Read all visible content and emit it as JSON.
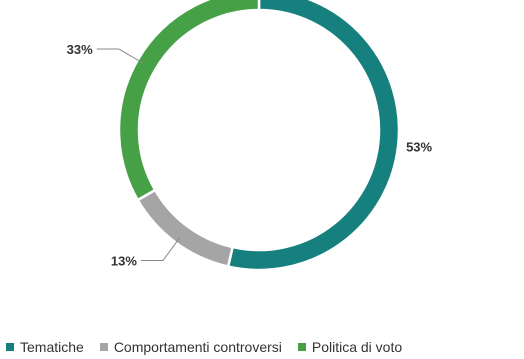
{
  "chart_data": {
    "type": "pie",
    "donut": true,
    "categories": [
      "Tematiche",
      "Comportamenti controversi",
      "Politica di voto"
    ],
    "values": [
      53,
      13,
      33
    ],
    "data_labels": [
      "53%",
      "13%",
      "33%"
    ],
    "colors": [
      "#16807e",
      "#a5a5a5",
      "#46a046"
    ],
    "legend": {
      "position": "bottom",
      "items": [
        "Tematiche",
        "Comportamenti controversi",
        "Politica di voto"
      ]
    }
  }
}
